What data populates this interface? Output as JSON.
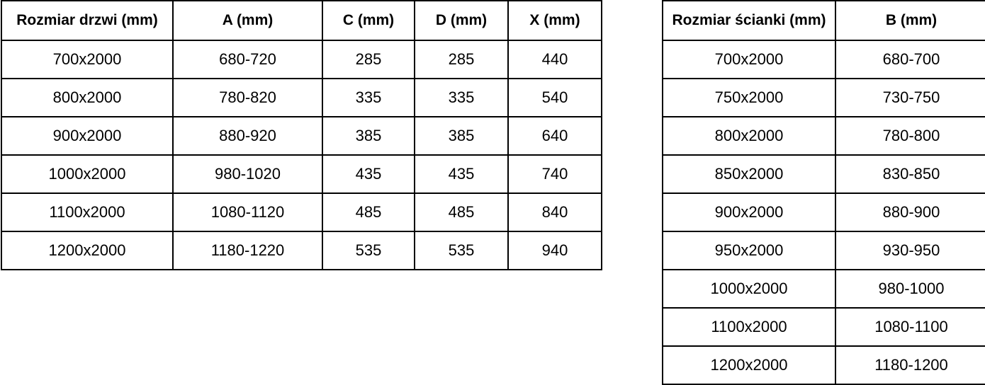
{
  "page": {
    "background_color": "#ffffff",
    "border_color": "#000000",
    "text_color": "#000000"
  },
  "tables": [
    {
      "id": "door-sizes",
      "headers": [
        "Rozmiar drzwi (mm)",
        "A (mm)",
        "C (mm)",
        "D (mm)",
        "X (mm)"
      ],
      "rows": [
        [
          "700x2000",
          "680-720",
          "285",
          "285",
          "440"
        ],
        [
          "800x2000",
          "780-820",
          "335",
          "335",
          "540"
        ],
        [
          "900x2000",
          "880-920",
          "385",
          "385",
          "640"
        ],
        [
          "1000x2000",
          "980-1020",
          "435",
          "435",
          "740"
        ],
        [
          "1100x2000",
          "1080-1120",
          "485",
          "485",
          "840"
        ],
        [
          "1200x2000",
          "1180-1220",
          "535",
          "535",
          "940"
        ]
      ]
    },
    {
      "id": "wall-sizes",
      "headers": [
        "Rozmiar ścianki (mm)",
        "B (mm)"
      ],
      "rows": [
        [
          "700x2000",
          "680-700"
        ],
        [
          "750x2000",
          "730-750"
        ],
        [
          "800x2000",
          "780-800"
        ],
        [
          "850x2000",
          "830-850"
        ],
        [
          "900x2000",
          "880-900"
        ],
        [
          "950x2000",
          "930-950"
        ],
        [
          "1000x2000",
          "980-1000"
        ],
        [
          "1100x2000",
          "1080-1100"
        ],
        [
          "1200x2000",
          "1180-1200"
        ]
      ]
    }
  ]
}
